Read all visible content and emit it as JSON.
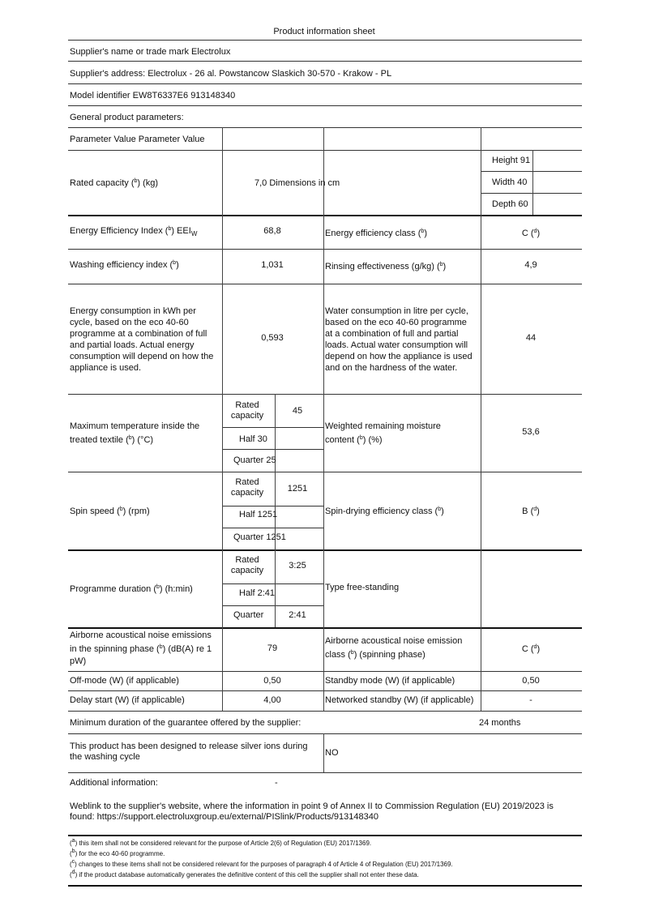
{
  "title": "Product information sheet",
  "supplier_name": "Supplier's name or trade mark Electrolux",
  "supplier_address": "Supplier's address: Electrolux - 26 al. Powstancow Slaskich 30-570 - Krakow - PL",
  "model_identifier": "Model identifier EW8T6337E6 913148340",
  "general_params": "General product parameters:",
  "header": "Parameter Value Parameter Value",
  "rated_capacity": {
    "label": "Rated capacity (b) (kg)",
    "value": "7,0 Dimensions in cm",
    "height": "Height 91",
    "width": "Width 40",
    "depth": "Depth 60"
  },
  "eei": {
    "label": "Energy Efficiency Index (b) EEI",
    "sub": "W",
    "value": "68,8",
    "class_label": "Energy efficiency class (b)",
    "class_value": "C (d)"
  },
  "washing": {
    "label": "Washing efficiency index (b)",
    "value": "1,031",
    "rinse_label": "Rinsing effectiveness (g/kg) (b)",
    "rinse_value": "4,9"
  },
  "energy": {
    "lines": [
      "Energy consumption in kWh per",
      "cycle, based on the eco 40-60",
      "programme at a combination of full",
      "and partial loads. Actual energy",
      "consumption will depend on how the",
      "appliance is used."
    ],
    "value": "0,593",
    "water_lines": [
      "Water consumption in litre per cycle,",
      "based on the eco 40-60 programme",
      "at a combination of full and partial",
      "loads. Actual water consumption will",
      "depend on how the appliance is used",
      "and on the hardness of the water."
    ],
    "water_value": "44"
  },
  "temp": {
    "lines": [
      "Maximum temperature inside the",
      "treated textile (b) (°C)"
    ],
    "rated1": "Rated",
    "rated2": "capacity",
    "rated_value": "45",
    "half": "Half 30",
    "quarter": "Quarter 25",
    "moist_lines": [
      "Weighted remaining moisture",
      "content (b) (%)"
    ],
    "moist_value": "53,6"
  },
  "spin": {
    "label": "Spin speed (b) (rpm)",
    "rated1": "Rated",
    "rated2": "capacity",
    "rated_value": "1251",
    "half": "Half 1251",
    "quarter": "Quarter 1251",
    "class_label": "Spin-drying efficiency class (b)",
    "class_value": "B (d)"
  },
  "programme": {
    "label": "Programme duration (b) (h:min)",
    "rated1": "Rated",
    "rated2": "capacity",
    "rated_value": "3:25",
    "half": "Half 2:41",
    "quarter": "Quarter",
    "quarter_value": "2:41",
    "type": "Type free-standing"
  },
  "noise": {
    "lines": [
      "Airborne acoustical noise emissions",
      "in the spinning phase (b) (dB(A) re 1",
      "pW)"
    ],
    "value": "79",
    "class_lines": [
      "Airborne acoustical noise emission",
      "class (b) (spinning phase)"
    ],
    "class_value": "C (d)"
  },
  "offmode": {
    "label": "Off-mode (W) (if applicable)",
    "value": "0,50",
    "standby_label": "Standby mode (W) (if applicable)",
    "standby_value": "0,50"
  },
  "delay": {
    "label": "Delay start (W) (if applicable)",
    "value": "4,00",
    "networked_label": "Networked standby (W) (if applicable)",
    "networked_value": "-"
  },
  "guarantee": {
    "label": "Minimum duration of the guarantee offered by the supplier:",
    "value": "24 months"
  },
  "silver": {
    "lines": [
      "This product has been designed to release silver ions during",
      "the washing cycle"
    ],
    "value": "NO"
  },
  "additional": {
    "label": "Additional information:",
    "value": "-"
  },
  "weblink": [
    "Weblink to the supplier's website, where the information in point 9 of Annex II to Commission Regulation (EU) 2019/2023 is",
    "found: https://support.electroluxgroup.eu/external/PISlink/Products/913148340"
  ],
  "footnotes": [
    "(a) this item shall not be considered relevant for the purpose of Article 2(6) of Regulation (EU) 2017/1369.",
    "(b) for the eco 40-60 programme.",
    "(c) changes to these items shall not be considered relevant for the purposes of paragraph 4 of Article 4 of Regulation (EU) 2017/1369.",
    "(d) if the product database automatically generates the definitive content of this cell the supplier shall not enter these data."
  ]
}
